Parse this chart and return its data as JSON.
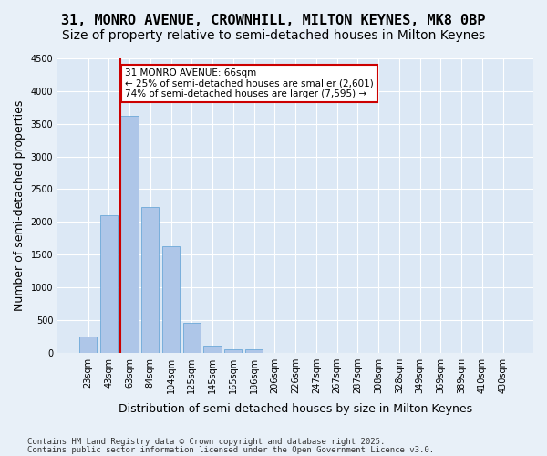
{
  "title_line1": "31, MONRO AVENUE, CROWNHILL, MILTON KEYNES, MK8 0BP",
  "title_line2": "Size of property relative to semi-detached houses in Milton Keynes",
  "xlabel": "Distribution of semi-detached houses by size in Milton Keynes",
  "ylabel": "Number of semi-detached properties",
  "categories": [
    "23sqm",
    "43sqm",
    "63sqm",
    "84sqm",
    "104sqm",
    "125sqm",
    "145sqm",
    "165sqm",
    "186sqm",
    "206sqm",
    "226sqm",
    "247sqm",
    "267sqm",
    "287sqm",
    "308sqm",
    "328sqm",
    "349sqm",
    "369sqm",
    "389sqm",
    "410sqm",
    "430sqm"
  ],
  "values": [
    250,
    2100,
    3620,
    2220,
    1620,
    450,
    100,
    50,
    50,
    0,
    0,
    0,
    0,
    0,
    0,
    0,
    0,
    0,
    0,
    0,
    0
  ],
  "bar_color": "#aec6e8",
  "bar_edge_color": "#5a9fd4",
  "ylim": [
    0,
    4500
  ],
  "yticks": [
    0,
    500,
    1000,
    1500,
    2000,
    2500,
    3000,
    3500,
    4000,
    4500
  ],
  "vline_x": 2,
  "vline_color": "#cc0000",
  "annotation_title": "31 MONRO AVENUE: 66sqm",
  "annotation_line1": "← 25% of semi-detached houses are smaller (2,601)",
  "annotation_line2": "74% of semi-detached houses are larger (7,595) →",
  "annotation_box_color": "#cc0000",
  "footnote1": "Contains HM Land Registry data © Crown copyright and database right 2025.",
  "footnote2": "Contains public sector information licensed under the Open Government Licence v3.0.",
  "bg_color": "#e8f0f8",
  "plot_bg_color": "#dce8f5",
  "grid_color": "#ffffff",
  "title_fontsize": 11,
  "subtitle_fontsize": 10,
  "tick_fontsize": 7,
  "ylabel_fontsize": 9,
  "xlabel_fontsize": 9
}
